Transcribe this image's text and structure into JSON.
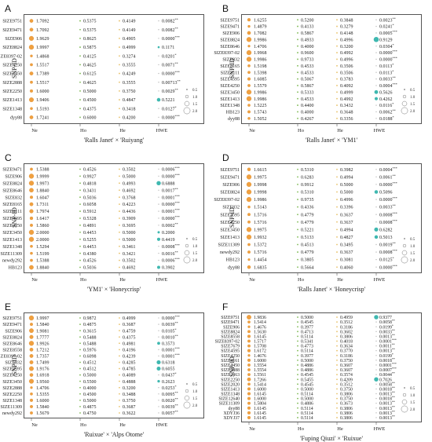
{
  "y_axis_label": "SNP-ID",
  "columns": [
    "Ne",
    "Ho",
    "He",
    "HWE"
  ],
  "colors": {
    "ne": "#f0a040",
    "ho": "#9cc84a",
    "he": "#e8c26a",
    "hwe": "#3fb8b0",
    "dot": "#7fba54"
  },
  "legend_values": [
    "0.5",
    "1.0",
    "1.5",
    "2.0"
  ],
  "panels": [
    {
      "label": "A",
      "caption": "'Ralls Janet' × 'Ruiyang'",
      "snps": [
        "SIZE9751",
        "SIZE9471",
        "SIZE906",
        "SIZE8824",
        "SIZE8397-02",
        "SIZE4250",
        "SIZE3450",
        "SIZE2888",
        "SIZE2250",
        "SIZE1413",
        "SIZE1348",
        "dyy88"
      ],
      "ne": [
        "1.7092",
        "1.7092",
        "1.9629",
        "1.9997",
        "1.4868",
        "1.5517",
        "1.7389",
        "1.5517",
        "1.6000",
        "1.9406",
        "1.5193",
        "1.7241"
      ],
      "ho": [
        "0.5375",
        "0.5375",
        "0.8625",
        "0.5875",
        "0.4125",
        "0.4625",
        "0.6125",
        "0.4625",
        "0.5000",
        "0.4500",
        "0.4375",
        "0.6000"
      ],
      "he": [
        "0.4149",
        "0.4149",
        "0.4905",
        "0.4999",
        "0.3274",
        "0.3555",
        "0.4249",
        "0.3555",
        "0.3750",
        "0.4847",
        "0.3418",
        "0.4200"
      ],
      "hwe": [
        "0.0082**",
        "0.0082**",
        "0.0000***",
        "0.1171",
        "0.0201*",
        "0.0071**",
        "0.0000***",
        "0.00713**",
        "0.0029**",
        "0.5221",
        "0.0127*",
        "0.0000***"
      ]
    },
    {
      "label": "B",
      "caption": "'Ralls Janet' × 'YM1'",
      "snps": [
        "SIZE9751",
        "SIZE9471",
        "SIZE906",
        "SIZE8824",
        "SIZE8646",
        "SIZE8397-02",
        "SIZE832",
        "SIZE8165",
        "SIZE8111",
        "SIZE4595",
        "SIZE4250",
        "SIZE3450",
        "SIZE1413",
        "SIZE1348",
        "HB123",
        "dyy88"
      ],
      "ne": [
        "1.6255",
        "1.4879",
        "1.7082",
        "1.9986",
        "1.4706",
        "1.9968",
        "1.9986",
        "1.5198",
        "1.5398",
        "1.6085",
        "1.5579",
        "1.9986",
        "1.9986",
        "1.5225",
        "1.5743",
        "1.5052"
      ],
      "ho": [
        "0.5200",
        "0.4133",
        "0.5867",
        "0.4933",
        "0.4000",
        "0.9600",
        "0.9733",
        "0.4533",
        "0.4533",
        "0.5067",
        "0.5867",
        "0.5333",
        "0.4533",
        "0.4400",
        "0.4000",
        "0.4267"
      ],
      "he": [
        "0.3848",
        "0.3279",
        "0.4148",
        "0.4996",
        "0.3200",
        "0.4992",
        "0.4996",
        "0.3506",
        "0.3506",
        "0.3783",
        "0.4092",
        "0.4999",
        "0.4992",
        "0.3432",
        "0.3648",
        "0.3356"
      ],
      "hwe": [
        "0.0023**",
        "0.0241*",
        "0.0005***",
        "0.9129",
        "0.0304*",
        "0.0000***",
        "0.0000***",
        "0.0113*",
        "0.0113*",
        "0.0033**",
        "0.0004***",
        "0.5626",
        "0.4262",
        "0.0116*",
        "0.0062**",
        "0.0188*"
      ]
    },
    {
      "label": "C",
      "caption": "'YM1' × 'Honeycrisp'",
      "snps": [
        "SIZE9471",
        "SIZE906",
        "SIZE8824",
        "SIZE8646",
        "SIZE832",
        "SIZE8165",
        "SIZE8111",
        "SIZE4595",
        "SIZE4250",
        "SIZE3450",
        "SIZE1413",
        "SIZE1348",
        "SIZE11309",
        "newdy292",
        "HB123"
      ],
      "ne": [
        "1.5388",
        "1.9999",
        "1.9973",
        "1.8840",
        "1.6047",
        "1.7311",
        "1.7974",
        "1.6417",
        "1.5860",
        "2.0000",
        "2.0000",
        "1.5294",
        "1.5199",
        "1.5388",
        "1.8840"
      ],
      "ho": [
        "0.4526",
        "0.9927",
        "0.4818",
        "0.3431",
        "0.5036",
        "0.6058",
        "0.5912",
        "0.5328",
        "0.4891",
        "0.4453",
        "0.5255",
        "0.4453",
        "0.4380",
        "0.4526",
        "0.5036"
      ],
      "he": [
        "0.3502",
        "0.5000",
        "0.4993",
        "0.4692",
        "0.3768",
        "0.4223",
        "0.4436",
        "0.3909",
        "0.3695",
        "0.5000",
        "0.5000",
        "0.3461",
        "0.3421",
        "0.3502",
        "0.4692"
      ],
      "hwe": [
        "0.0006***",
        "0.0000***",
        "0.6888",
        "0.0017**",
        "0.0001***",
        "0.0000***",
        "0.0001***",
        "0.0000***",
        "0.0002**",
        "0.2000",
        "0.4419",
        "0.0008***",
        "0.0016**",
        "0.0006***",
        "0.3902"
      ]
    },
    {
      "label": "D",
      "caption": "'Ralls Janet' × 'Honeycrisp'",
      "snps": [
        "SIZE9751",
        "SIZE9471",
        "SIZE906",
        "SIZE8824",
        "SIZE8397-02",
        "SIZE832",
        "SIZE4595",
        "SIZE4250",
        "SIZE3450",
        "SIZE1413",
        "SIZE11309",
        "newdy292",
        "HB123",
        "dyy88"
      ],
      "ne": [
        "1.6615",
        "1.9975",
        "1.9998",
        "1.9998",
        "1.9986",
        "1.5143",
        "1.5716",
        "1.5716",
        "1.9975",
        "1.9932",
        "1.5372",
        "1.5716",
        "1.4454",
        "1.6835"
      ],
      "ho": [
        "0.5310",
        "0.6283",
        "0.9912",
        "0.5310",
        "0.9735",
        "0.4336",
        "0.4779",
        "0.4779",
        "0.5221",
        "0.5133",
        "0.4513",
        "0.4779",
        "0.3805",
        "0.5664"
      ],
      "he": [
        "0.3982",
        "0.4994",
        "0.5000",
        "0.5000",
        "0.4996",
        "0.3396",
        "0.3637",
        "0.3637",
        "0.4994",
        "0.4827",
        "0.3495",
        "0.3637",
        "0.3081",
        "0.4060"
      ],
      "hwe": [
        "0.0004***",
        "0.0061**",
        "0.0000***",
        "0.5096",
        "0.0000***",
        "0.0033**",
        "0.0008***",
        "0.0008***",
        "0.6282",
        "0.5013",
        "0.0019**",
        "0.0008***",
        "0.0125*",
        "0.0000***"
      ]
    },
    {
      "label": "E",
      "caption": "'Ruixue' × 'Alps Otome'",
      "snps": [
        "SIZE9751",
        "SIZE9471",
        "SIZE906",
        "SIZE8824",
        "SIZE8646",
        "SIZE8558",
        "SIZE8397-02",
        "SIZE832",
        "SIZE4595",
        "SIZE4250",
        "SIZE3450",
        "SIZE2888",
        "SIZE2250",
        "SIZE1348",
        "SIZE11309",
        "newdy292"
      ],
      "ne": [
        "1.9997",
        "1.5840",
        "1.9081",
        "1.7777",
        "1.9926",
        "1.7212",
        "1.7357",
        "1.7499",
        "1.9176",
        "1.6918",
        "1.9560",
        "1.4706",
        "1.5355",
        "1.6000",
        "1.5840",
        "1.5679"
      ],
      "ho": [
        "0.9872",
        "0.4875",
        "0.3615",
        "0.5488",
        "0.5488",
        "0.5976",
        "0.6098",
        "0.4512",
        "0.4512",
        "0.5000",
        "0.5500",
        "0.4000",
        "0.4500",
        "0.5000",
        "0.4875",
        "0.4750"
      ],
      "he": [
        "0.4999",
        "0.3687",
        "0.4759",
        "0.4375",
        "0.4981",
        "0.4196",
        "0.4239",
        "0.4285",
        "0.4785",
        "0.4089",
        "0.4888",
        "0.3200",
        "0.3488",
        "0.3750",
        "0.3687",
        "0.3622"
      ],
      "hwe": [
        "0.0000***",
        "0.0039**",
        "0.0105*",
        "0.0010**",
        "0.3573",
        "0.0001***",
        "0.0001***",
        "0.6318",
        "0.6055",
        "0.0437*",
        "0.2623",
        "0.0253*",
        "0.0095**",
        "0.0020**",
        "0.0039**",
        "0.0057**"
      ]
    },
    {
      "label": "F",
      "caption": "'Fuping Qiuzi' × 'Ruixue'",
      "snps": [
        "SIZE9751",
        "SIZE9471",
        "SIZE906",
        "SIZE8824",
        "SIZE8558",
        "SIZE8397-02",
        "SIZE7679",
        "SIZE4595",
        "SIZE4250",
        "SIZE4161",
        "SIZE3450",
        "SIZE2888",
        "SIZE2363",
        "SIZE2250",
        "SIZE2020",
        "SIZE1413",
        "SIZE1348",
        "SIZE12640",
        "SIZE11309",
        "dyy88",
        "XDYJ36",
        "XDYJ37"
      ],
      "ne": [
        "1.9836",
        "1.5414",
        "1.4676",
        "1.5630",
        "1.6145",
        "1.5717",
        "1.5708",
        "1.6172",
        "1.4676",
        "1.6000",
        "1.5554",
        "1.5554",
        "1.5561",
        "1.7266",
        "1.5414",
        "1.6000",
        "1.6145",
        "1.6000",
        "1.5804",
        "1.6145",
        "1.6145",
        "1.6145"
      ],
      "ho": [
        "0.5000",
        "0.4545",
        "0.3977",
        "0.4713",
        "0.5114",
        "0.5341",
        "0.4773",
        "0.5114",
        "0.3977",
        "0.5000",
        "0.4886",
        "0.4886",
        "0.4545",
        "0.5455",
        "0.4545",
        "0.5000",
        "0.5114",
        "0.5000",
        "0.4886",
        "0.5114",
        "0.5114",
        "0.5114"
      ],
      "he": [
        "0.4959",
        "0.3512",
        "0.3186",
        "0.3602",
        "0.3806",
        "0.4018",
        "0.3634",
        "0.3770",
        "0.3186",
        "0.3750",
        "0.3607",
        "0.3607",
        "0.3574",
        "0.4209",
        "0.3512",
        "0.3750",
        "0.3806",
        "0.3750",
        "0.3673",
        "0.3806",
        "0.3806",
        "0.3806"
      ],
      "hwe": [
        "0.9377",
        "0.0058**",
        "0.0199*",
        "0.0033**",
        "0.0013**",
        "0.0001***",
        "0.0011**",
        "0.0013**",
        "0.0199*",
        "0.0018**",
        "0.0001***",
        "0.0007***",
        "0.0044**",
        "0.7026",
        "0.0058**",
        "0.0018**",
        "0.0013**",
        "0.0018**",
        "0.0013**",
        "0.0013**",
        "0.0013**",
        "0.0013**"
      ]
    }
  ]
}
